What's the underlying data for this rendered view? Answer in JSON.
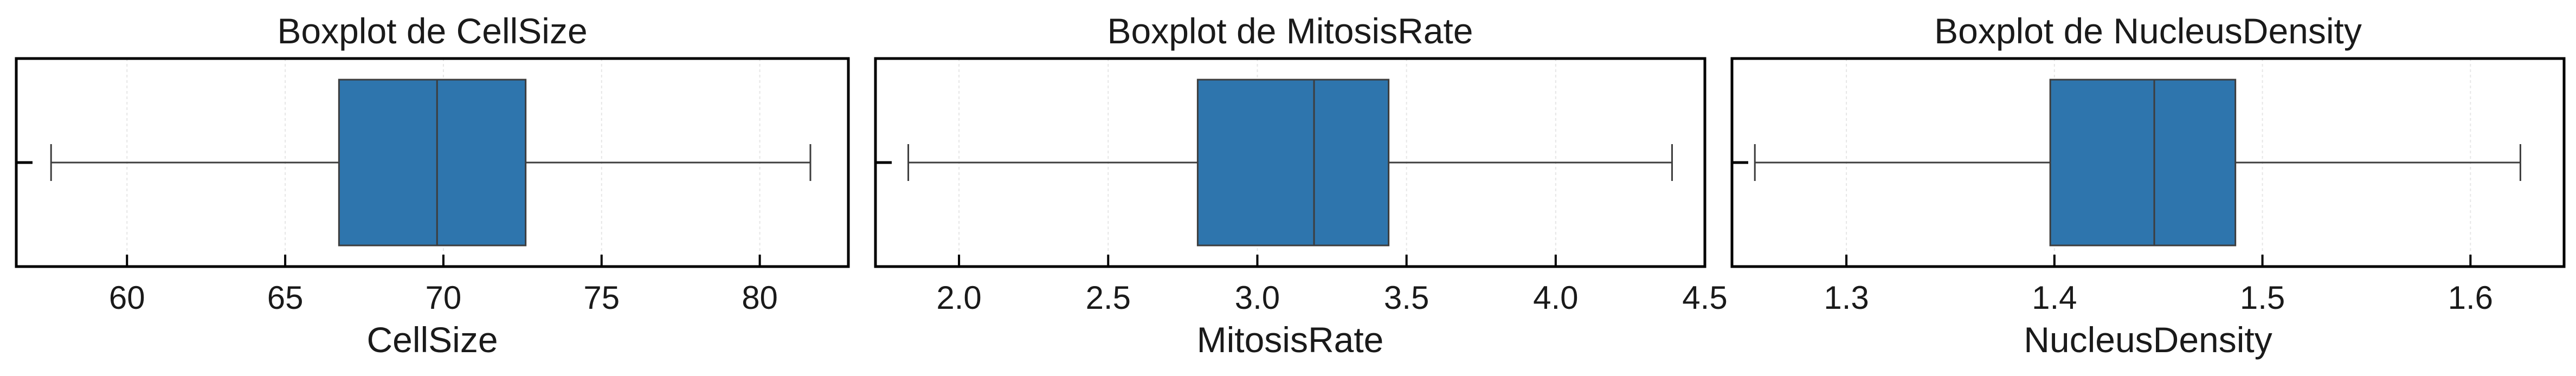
{
  "chart_data": [
    {
      "type": "boxplot",
      "title": "Boxplot de CellSize",
      "xlabel": "CellSize",
      "xlim": [
        56.5,
        82.8
      ],
      "xticks": [
        60,
        65,
        70,
        75,
        80
      ],
      "tick_labels": [
        "60",
        "65",
        "70",
        "75",
        "80"
      ],
      "box": {
        "whisker_low": 57.6,
        "q1": 66.7,
        "median": 69.8,
        "q3": 72.6,
        "whisker_high": 81.6
      },
      "outliers": [],
      "grid": true,
      "color": "#2e75ad"
    },
    {
      "type": "boxplot",
      "title": "Boxplot de MitosisRate",
      "xlabel": "MitosisRate",
      "xlim": [
        1.72,
        4.5
      ],
      "xticks": [
        2.0,
        2.5,
        3.0,
        3.5,
        4.0,
        4.5
      ],
      "tick_labels": [
        "2.0",
        "2.5",
        "3.0",
        "3.5",
        "4.0",
        "4.5"
      ],
      "box": {
        "whisker_low": 1.83,
        "q1": 2.8,
        "median": 3.19,
        "q3": 3.44,
        "whisker_high": 4.39
      },
      "outliers": [],
      "grid": true,
      "color": "#2e75ad"
    },
    {
      "type": "boxplot",
      "title": "Boxplot de NucleusDensity",
      "xlabel": "NucleusDensity",
      "xlim": [
        1.245,
        1.645
      ],
      "xticks": [
        1.3,
        1.4,
        1.5,
        1.6
      ],
      "tick_labels": [
        "1.3",
        "1.4",
        "1.5",
        "1.6"
      ],
      "box": {
        "whisker_low": 1.256,
        "q1": 1.398,
        "median": 1.448,
        "q3": 1.487,
        "whisker_high": 1.624
      },
      "outliers": [],
      "grid": true,
      "color": "#2e75ad"
    }
  ]
}
